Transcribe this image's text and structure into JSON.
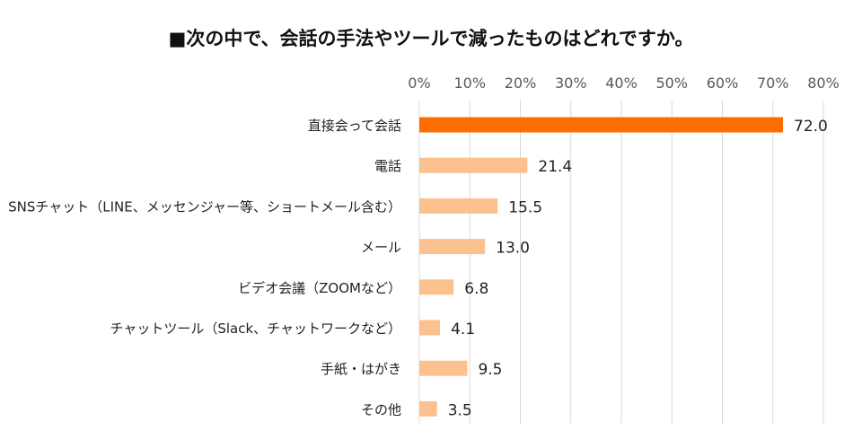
{
  "chart_data": {
    "type": "bar",
    "orientation": "horizontal",
    "title": "■次の中で、会話の手法やツールで減ったものはどれですか。",
    "categories": [
      "直接会って会話",
      "電話",
      "SNSチャット（LINE、メッセンジャー等、ショートメール含む）",
      "メール",
      "ビデオ会議（ZOOMなど）",
      "チャットツール（Slack、チャットワークなど）",
      "手紙・はがき",
      "その他"
    ],
    "values": [
      72.0,
      21.4,
      15.5,
      13.0,
      6.8,
      4.1,
      9.5,
      3.5
    ],
    "value_labels": [
      "72.0",
      "21.4",
      "15.5",
      "13.0",
      "6.8",
      "4.1",
      "9.5",
      "3.5"
    ],
    "x_ticks": [
      "0%",
      "10%",
      "20%",
      "30%",
      "40%",
      "50%",
      "60%",
      "70%",
      "80%"
    ],
    "xlim": [
      0,
      80
    ],
    "axis_position": "top",
    "grid": true,
    "colors": {
      "highlight": "#ff6d00",
      "bar": "#fbc18f",
      "grid": "#d9d9d9"
    },
    "highlight_index": 0
  }
}
